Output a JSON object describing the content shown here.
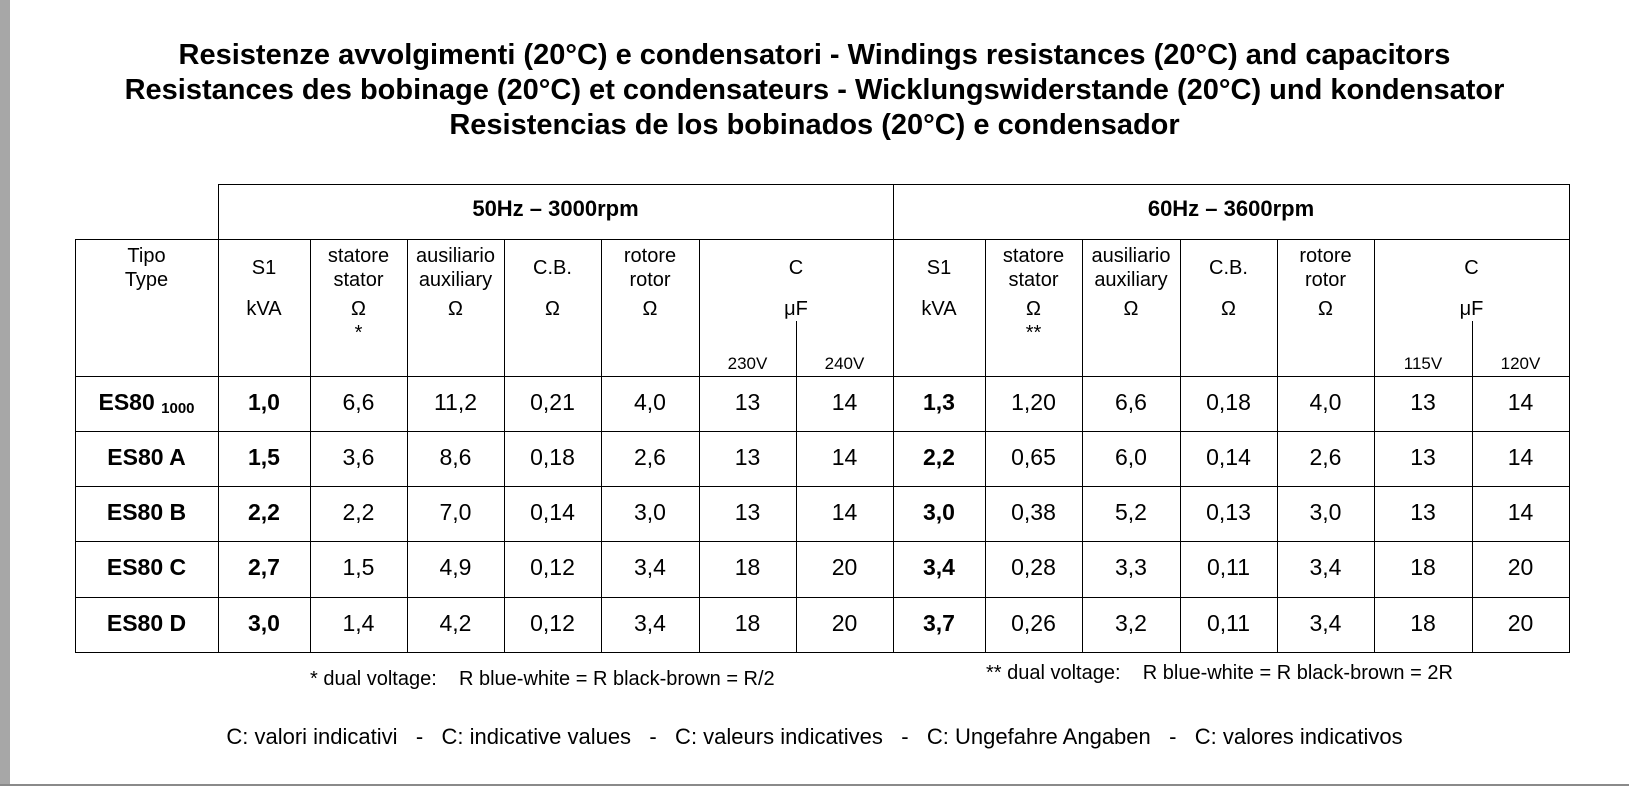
{
  "title_lines": [
    "Resistenze avvolgimenti (20°C) e condensatori - Windings resistances (20°C) and capacitors",
    "Resistances des bobinage (20°C) et condensateurs - Wicklungswiderstande (20°C) und kondensator",
    "Resistencias de los bobinados (20°C) e condensador"
  ],
  "groups": {
    "hz50": "50Hz – 3000rpm",
    "hz60": "60Hz – 3600rpm"
  },
  "type_header": [
    "Tipo",
    "Type"
  ],
  "header_50": {
    "s1": [
      "S1",
      "kVA"
    ],
    "stator": [
      "statore",
      "stator",
      "Ω",
      "*"
    ],
    "aux": [
      "ausiliario",
      "auxiliary",
      "Ω"
    ],
    "cb": [
      "C.B.",
      "Ω"
    ],
    "rotor": [
      "rotore",
      "rotor",
      "Ω"
    ],
    "cap": [
      "C",
      "μF"
    ],
    "volts": [
      "230V",
      "240V"
    ]
  },
  "header_60": {
    "s1": [
      "S1",
      "kVA"
    ],
    "stator": [
      "statore",
      "stator",
      "Ω",
      "**"
    ],
    "aux": [
      "ausiliario",
      "auxiliary",
      "Ω"
    ],
    "cb": [
      "C.B.",
      "Ω"
    ],
    "rotor": [
      "rotore",
      "rotor",
      "Ω"
    ],
    "cap": [
      "C",
      "μF"
    ],
    "volts": [
      "115V",
      "120V"
    ]
  },
  "rows": [
    {
      "type": "ES80",
      "sub": "1000",
      "v50": [
        "1,0",
        "6,6",
        "11,2",
        "0,21",
        "4,0",
        "13",
        "14"
      ],
      "v60": [
        "1,3",
        "1,20",
        "6,6",
        "0,18",
        "4,0",
        "13",
        "14"
      ]
    },
    {
      "type": "ES80 A",
      "sub": "",
      "v50": [
        "1,5",
        "3,6",
        "8,6",
        "0,18",
        "2,6",
        "13",
        "14"
      ],
      "v60": [
        "2,2",
        "0,65",
        "6,0",
        "0,14",
        "2,6",
        "13",
        "14"
      ]
    },
    {
      "type": "ES80 B",
      "sub": "",
      "v50": [
        "2,2",
        "2,2",
        "7,0",
        "0,14",
        "3,0",
        "13",
        "14"
      ],
      "v60": [
        "3,0",
        "0,38",
        "5,2",
        "0,13",
        "3,0",
        "13",
        "14"
      ]
    },
    {
      "type": "ES80 C",
      "sub": "",
      "v50": [
        "2,7",
        "1,5",
        "4,9",
        "0,12",
        "3,4",
        "18",
        "20"
      ],
      "v60": [
        "3,4",
        "0,28",
        "3,3",
        "0,11",
        "3,4",
        "18",
        "20"
      ]
    },
    {
      "type": "ES80 D",
      "sub": "",
      "v50": [
        "3,0",
        "1,4",
        "4,2",
        "0,12",
        "3,4",
        "18",
        "20"
      ],
      "v60": [
        "3,7",
        "0,26",
        "3,2",
        "0,11",
        "3,4",
        "18",
        "20"
      ]
    }
  ],
  "notes": {
    "note_50": "* dual voltage:    R blue-white = R black-brown = R/2",
    "note_60": "** dual voltage:    R blue-white = R black-brown = 2R"
  },
  "footer": "C: valori indicativi   -   C: indicative values   -   C: valeurs indicatives   -   C: Ungefahre Angaben   -   C: valores indicativos"
}
